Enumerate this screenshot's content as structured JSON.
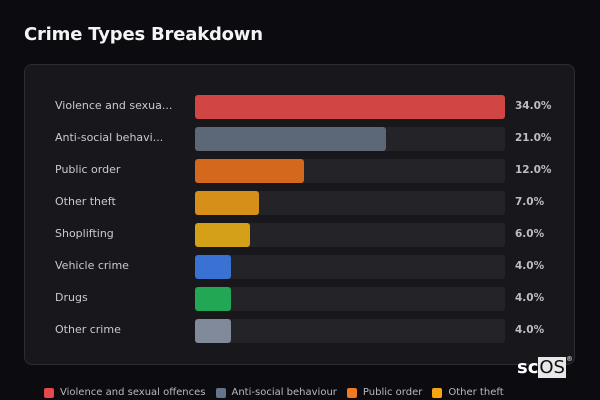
{
  "title": "Crime Types Breakdown",
  "chart_data": {
    "type": "bar",
    "orientation": "horizontal",
    "title": "Crime Types Breakdown",
    "categories": [
      "Violence and sexual offences",
      "Anti-social behaviour",
      "Public order",
      "Other theft",
      "Shoplifting",
      "Vehicle crime",
      "Drugs",
      "Other crime"
    ],
    "display_labels": [
      "Violence and sexua...",
      "Anti-social behavi...",
      "Public order",
      "Other theft",
      "Shoplifting",
      "Vehicle crime",
      "Drugs",
      "Other crime"
    ],
    "values": [
      34.0,
      21.0,
      12.0,
      7.0,
      6.0,
      4.0,
      4.0,
      4.0
    ],
    "value_labels": [
      "34.0%",
      "21.0%",
      "12.0%",
      "7.0%",
      "6.0%",
      "4.0%",
      "4.0%",
      "4.0%"
    ],
    "colors": [
      "#d24545",
      "#5c6778",
      "#d4691e",
      "#d6901a",
      "#d4a017",
      "#3a72d4",
      "#22a855",
      "#808a9a"
    ],
    "xlim": [
      0,
      34
    ],
    "unit": "%"
  },
  "legend": [
    {
      "label": "Violence and sexual offences",
      "color": "#e5484d"
    },
    {
      "label": "Anti-social behaviour",
      "color": "#64748b"
    },
    {
      "label": "Public order",
      "color": "#f07a1f"
    },
    {
      "label": "Other theft",
      "color": "#f5a511"
    }
  ],
  "logo": {
    "main": "sc",
    "box": "OS",
    "mark": "®"
  }
}
